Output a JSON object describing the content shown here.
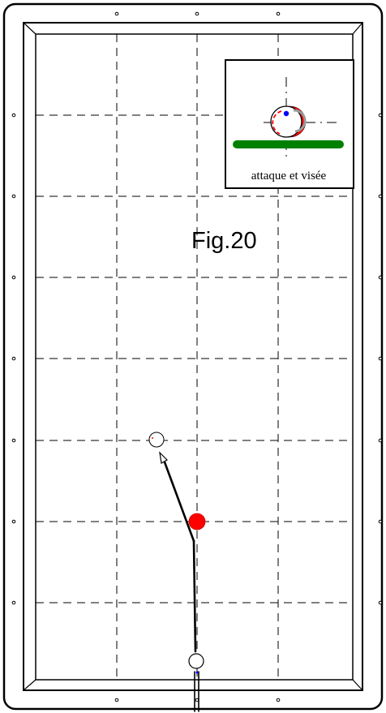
{
  "figure": {
    "label": "Fig.20",
    "inset_caption": "attaque et visée"
  },
  "colors": {
    "table_line": "#000000",
    "grid_line": "#000000",
    "object_ball": "#ff0000",
    "cushion_green": "#008000",
    "aim_dot": "#0000ff",
    "ball_fill": "#ffffff"
  },
  "icons": {
    "diamond": "diamond-marker-icon",
    "arrow": "arrowhead-icon"
  }
}
